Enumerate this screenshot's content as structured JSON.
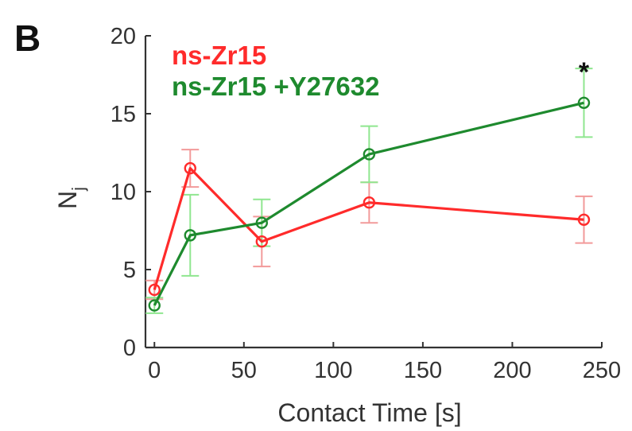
{
  "panel_label": "B",
  "chart_data": {
    "type": "line",
    "xlabel": "Contact Time [s]",
    "ylabel": "N",
    "ylabel_subscript": "j",
    "xlim": [
      -5,
      250
    ],
    "ylim": [
      0,
      20
    ],
    "xticks": [
      0,
      50,
      100,
      150,
      200,
      250
    ],
    "yticks": [
      0,
      5,
      10,
      15,
      20
    ],
    "grid": false,
    "legend_position": "top-left",
    "series": [
      {
        "name": "ns-Zr15",
        "color": "#ff2b2b",
        "error_color": "#f29a9a",
        "x": [
          0,
          20,
          60,
          120,
          240
        ],
        "y": [
          3.7,
          11.5,
          6.8,
          9.3,
          8.2
        ],
        "err": [
          0.6,
          1.2,
          1.6,
          1.3,
          1.5
        ]
      },
      {
        "name": "ns-Zr15 +Y27632",
        "color": "#1e8a2e",
        "error_color": "#8fe68f",
        "x": [
          0,
          20,
          60,
          120,
          240
        ],
        "y": [
          2.7,
          7.2,
          8.0,
          12.4,
          15.7
        ],
        "err": [
          0.5,
          2.6,
          1.5,
          1.8,
          2.2
        ]
      }
    ],
    "annotations": [
      {
        "text": "*",
        "x": 240,
        "y": 18.0
      }
    ]
  }
}
